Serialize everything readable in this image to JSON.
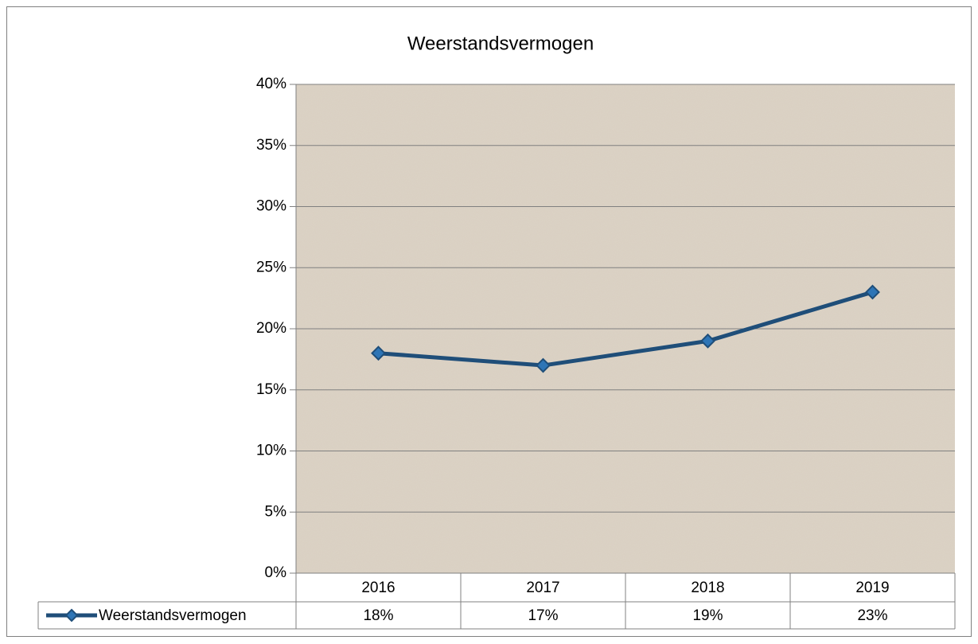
{
  "chart_data": {
    "type": "line",
    "title": "Weerstandsvermogen",
    "categories": [
      "2016",
      "2017",
      "2018",
      "2019"
    ],
    "series": [
      {
        "name": "Weerstandsvermogen",
        "color": "#1f4e79",
        "values": [
          18,
          17,
          19,
          23
        ],
        "value_labels": [
          "18%",
          "17%",
          "19%",
          "23%"
        ]
      }
    ],
    "ylim": [
      0,
      40
    ],
    "yticks": [
      {
        "value": 0,
        "label": "0%"
      },
      {
        "value": 5,
        "label": "5%"
      },
      {
        "value": 10,
        "label": "10%"
      },
      {
        "value": 15,
        "label": "15%"
      },
      {
        "value": 20,
        "label": "20%"
      },
      {
        "value": 25,
        "label": "25%"
      },
      {
        "value": 30,
        "label": "30%"
      },
      {
        "value": 35,
        "label": "35%"
      },
      {
        "value": 40,
        "label": "40%"
      }
    ],
    "grid": true
  }
}
